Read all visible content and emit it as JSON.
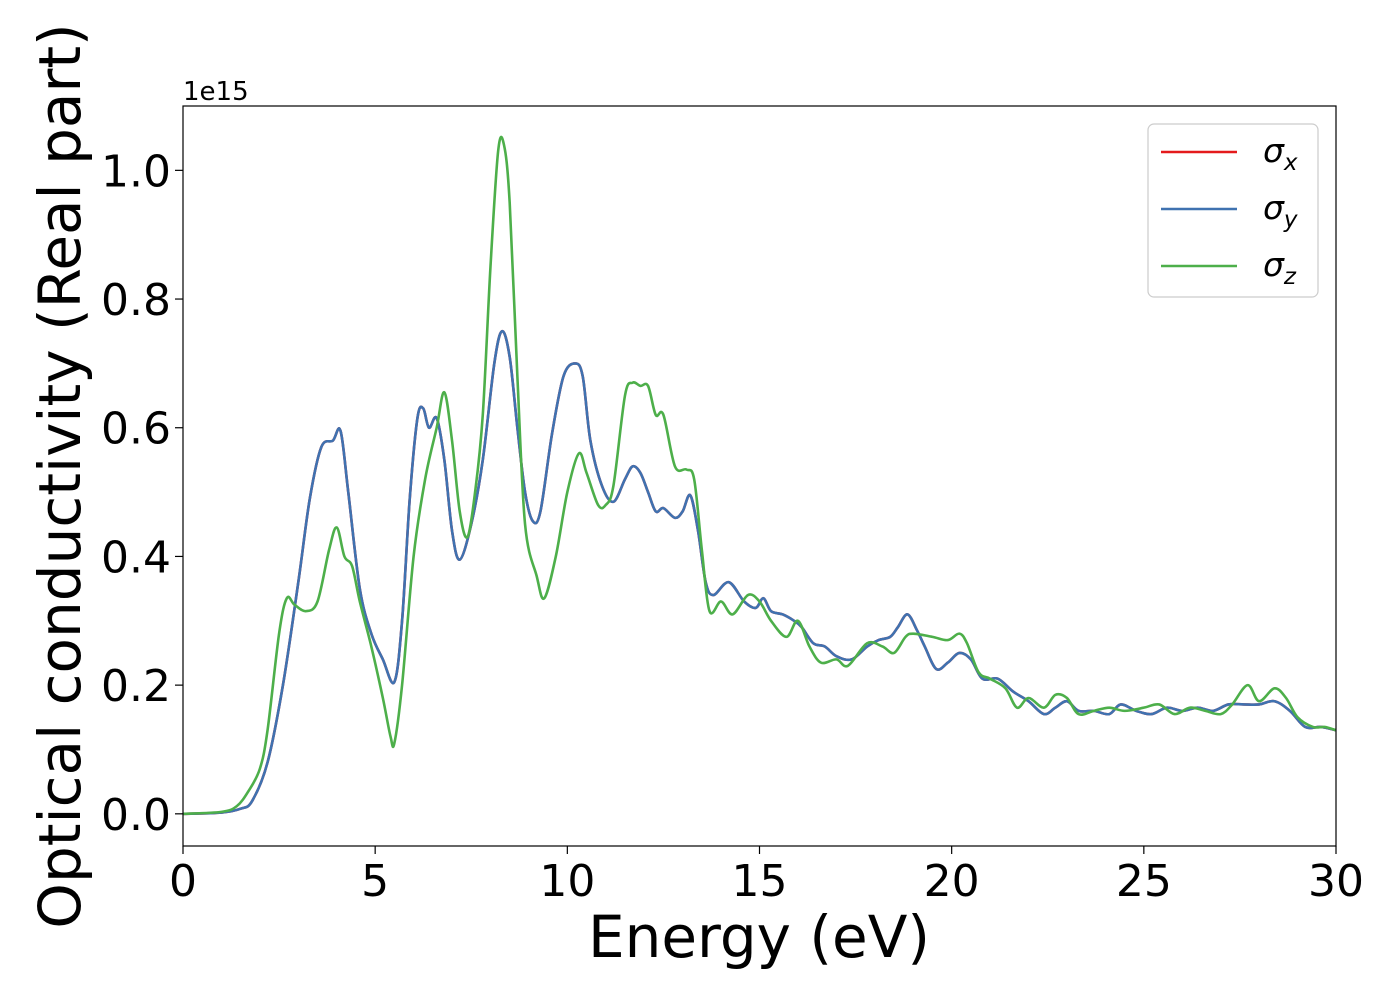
{
  "chart_data": {
    "type": "line",
    "title": "",
    "xlabel": "Energy (eV)",
    "ylabel": "Optical conductivity (Real part)",
    "y_offset_label": "1e15",
    "xlim": [
      0,
      30
    ],
    "ylim": [
      -0.05,
      1.1
    ],
    "x_ticks": [
      0,
      5,
      10,
      15,
      20,
      25,
      30
    ],
    "x_tick_labels": [
      "0",
      "5",
      "10",
      "15",
      "20",
      "25",
      "30"
    ],
    "y_ticks": [
      0.0,
      0.2,
      0.4,
      0.6,
      0.8,
      1.0
    ],
    "y_tick_labels": [
      "0.0",
      "0.2",
      "0.4",
      "0.6",
      "0.8",
      "1.0"
    ],
    "grid": false,
    "legend_position": "top-right",
    "series": [
      {
        "name": "σx",
        "symbol": "σ",
        "subscript": "x",
        "color": "#e41a1c",
        "points": [
          [
            0,
            0
          ],
          [
            1,
            0.002
          ],
          [
            1.5,
            0.008
          ],
          [
            1.8,
            0.02
          ],
          [
            2.2,
            0.08
          ],
          [
            2.6,
            0.2
          ],
          [
            3.0,
            0.36
          ],
          [
            3.3,
            0.49
          ],
          [
            3.6,
            0.57
          ],
          [
            3.9,
            0.58
          ],
          [
            4.1,
            0.595
          ],
          [
            4.3,
            0.5
          ],
          [
            4.6,
            0.35
          ],
          [
            4.9,
            0.28
          ],
          [
            5.2,
            0.24
          ],
          [
            5.5,
            0.205
          ],
          [
            5.7,
            0.3
          ],
          [
            5.9,
            0.49
          ],
          [
            6.1,
            0.615
          ],
          [
            6.25,
            0.63
          ],
          [
            6.4,
            0.6
          ],
          [
            6.6,
            0.615
          ],
          [
            6.8,
            0.55
          ],
          [
            7.0,
            0.44
          ],
          [
            7.2,
            0.395
          ],
          [
            7.5,
            0.45
          ],
          [
            7.8,
            0.55
          ],
          [
            8.1,
            0.7
          ],
          [
            8.3,
            0.75
          ],
          [
            8.5,
            0.71
          ],
          [
            8.7,
            0.6
          ],
          [
            8.9,
            0.5
          ],
          [
            9.1,
            0.455
          ],
          [
            9.3,
            0.47
          ],
          [
            9.6,
            0.59
          ],
          [
            9.9,
            0.68
          ],
          [
            10.2,
            0.7
          ],
          [
            10.4,
            0.68
          ],
          [
            10.6,
            0.58
          ],
          [
            10.9,
            0.51
          ],
          [
            11.2,
            0.485
          ],
          [
            11.5,
            0.52
          ],
          [
            11.7,
            0.54
          ],
          [
            11.9,
            0.53
          ],
          [
            12.1,
            0.5
          ],
          [
            12.3,
            0.47
          ],
          [
            12.5,
            0.475
          ],
          [
            12.8,
            0.46
          ],
          [
            13.0,
            0.47
          ],
          [
            13.2,
            0.495
          ],
          [
            13.4,
            0.44
          ],
          [
            13.6,
            0.36
          ],
          [
            13.8,
            0.34
          ],
          [
            14.2,
            0.36
          ],
          [
            14.6,
            0.33
          ],
          [
            14.9,
            0.32
          ],
          [
            15.1,
            0.335
          ],
          [
            15.3,
            0.315
          ],
          [
            15.6,
            0.31
          ],
          [
            15.9,
            0.3
          ],
          [
            16.1,
            0.29
          ],
          [
            16.4,
            0.265
          ],
          [
            16.7,
            0.26
          ],
          [
            17.0,
            0.245
          ],
          [
            17.4,
            0.24
          ],
          [
            17.8,
            0.26
          ],
          [
            18.1,
            0.27
          ],
          [
            18.4,
            0.275
          ],
          [
            18.6,
            0.29
          ],
          [
            18.85,
            0.31
          ],
          [
            19.1,
            0.285
          ],
          [
            19.3,
            0.26
          ],
          [
            19.6,
            0.225
          ],
          [
            19.9,
            0.235
          ],
          [
            20.2,
            0.25
          ],
          [
            20.5,
            0.24
          ],
          [
            20.8,
            0.21
          ],
          [
            21.2,
            0.21
          ],
          [
            21.6,
            0.19
          ],
          [
            22.0,
            0.175
          ],
          [
            22.4,
            0.155
          ],
          [
            22.7,
            0.165
          ],
          [
            23.0,
            0.175
          ],
          [
            23.3,
            0.16
          ],
          [
            23.7,
            0.16
          ],
          [
            24.1,
            0.155
          ],
          [
            24.4,
            0.17
          ],
          [
            24.8,
            0.16
          ],
          [
            25.2,
            0.155
          ],
          [
            25.6,
            0.165
          ],
          [
            26.0,
            0.16
          ],
          [
            26.4,
            0.165
          ],
          [
            26.8,
            0.16
          ],
          [
            27.2,
            0.17
          ],
          [
            27.6,
            0.17
          ],
          [
            28.0,
            0.17
          ],
          [
            28.4,
            0.175
          ],
          [
            28.8,
            0.16
          ],
          [
            29.2,
            0.135
          ],
          [
            29.6,
            0.135
          ],
          [
            30.0,
            0.13
          ]
        ]
      },
      {
        "name": "σy",
        "symbol": "σ",
        "subscript": "y",
        "color": "#3f72b0",
        "points": [
          [
            0,
            0
          ],
          [
            1,
            0.002
          ],
          [
            1.5,
            0.008
          ],
          [
            1.8,
            0.02
          ],
          [
            2.2,
            0.08
          ],
          [
            2.6,
            0.2
          ],
          [
            3.0,
            0.36
          ],
          [
            3.3,
            0.49
          ],
          [
            3.6,
            0.57
          ],
          [
            3.9,
            0.58
          ],
          [
            4.1,
            0.595
          ],
          [
            4.3,
            0.5
          ],
          [
            4.6,
            0.35
          ],
          [
            4.9,
            0.28
          ],
          [
            5.2,
            0.24
          ],
          [
            5.5,
            0.205
          ],
          [
            5.7,
            0.3
          ],
          [
            5.9,
            0.49
          ],
          [
            6.1,
            0.615
          ],
          [
            6.25,
            0.63
          ],
          [
            6.4,
            0.6
          ],
          [
            6.6,
            0.615
          ],
          [
            6.8,
            0.55
          ],
          [
            7.0,
            0.44
          ],
          [
            7.2,
            0.395
          ],
          [
            7.5,
            0.45
          ],
          [
            7.8,
            0.55
          ],
          [
            8.1,
            0.7
          ],
          [
            8.3,
            0.75
          ],
          [
            8.5,
            0.71
          ],
          [
            8.7,
            0.6
          ],
          [
            8.9,
            0.5
          ],
          [
            9.1,
            0.455
          ],
          [
            9.3,
            0.47
          ],
          [
            9.6,
            0.59
          ],
          [
            9.9,
            0.68
          ],
          [
            10.2,
            0.7
          ],
          [
            10.4,
            0.68
          ],
          [
            10.6,
            0.58
          ],
          [
            10.9,
            0.51
          ],
          [
            11.2,
            0.485
          ],
          [
            11.5,
            0.52
          ],
          [
            11.7,
            0.54
          ],
          [
            11.9,
            0.53
          ],
          [
            12.1,
            0.5
          ],
          [
            12.3,
            0.47
          ],
          [
            12.5,
            0.475
          ],
          [
            12.8,
            0.46
          ],
          [
            13.0,
            0.47
          ],
          [
            13.2,
            0.495
          ],
          [
            13.4,
            0.44
          ],
          [
            13.6,
            0.36
          ],
          [
            13.8,
            0.34
          ],
          [
            14.2,
            0.36
          ],
          [
            14.6,
            0.33
          ],
          [
            14.9,
            0.32
          ],
          [
            15.1,
            0.335
          ],
          [
            15.3,
            0.315
          ],
          [
            15.6,
            0.31
          ],
          [
            15.9,
            0.3
          ],
          [
            16.1,
            0.29
          ],
          [
            16.4,
            0.265
          ],
          [
            16.7,
            0.26
          ],
          [
            17.0,
            0.245
          ],
          [
            17.4,
            0.24
          ],
          [
            17.8,
            0.26
          ],
          [
            18.1,
            0.27
          ],
          [
            18.4,
            0.275
          ],
          [
            18.6,
            0.29
          ],
          [
            18.85,
            0.31
          ],
          [
            19.1,
            0.285
          ],
          [
            19.3,
            0.26
          ],
          [
            19.6,
            0.225
          ],
          [
            19.9,
            0.235
          ],
          [
            20.2,
            0.25
          ],
          [
            20.5,
            0.24
          ],
          [
            20.8,
            0.21
          ],
          [
            21.2,
            0.21
          ],
          [
            21.6,
            0.19
          ],
          [
            22.0,
            0.175
          ],
          [
            22.4,
            0.155
          ],
          [
            22.7,
            0.165
          ],
          [
            23.0,
            0.175
          ],
          [
            23.3,
            0.16
          ],
          [
            23.7,
            0.16
          ],
          [
            24.1,
            0.155
          ],
          [
            24.4,
            0.17
          ],
          [
            24.8,
            0.16
          ],
          [
            25.2,
            0.155
          ],
          [
            25.6,
            0.165
          ],
          [
            26.0,
            0.16
          ],
          [
            26.4,
            0.165
          ],
          [
            26.8,
            0.16
          ],
          [
            27.2,
            0.17
          ],
          [
            27.6,
            0.17
          ],
          [
            28.0,
            0.17
          ],
          [
            28.4,
            0.175
          ],
          [
            28.8,
            0.16
          ],
          [
            29.2,
            0.135
          ],
          [
            29.6,
            0.135
          ],
          [
            30.0,
            0.13
          ]
        ]
      },
      {
        "name": "σz",
        "symbol": "σ",
        "subscript": "z",
        "color": "#4daf4a",
        "points": [
          [
            0,
            0
          ],
          [
            1,
            0.003
          ],
          [
            1.4,
            0.012
          ],
          [
            1.7,
            0.035
          ],
          [
            2.0,
            0.07
          ],
          [
            2.2,
            0.13
          ],
          [
            2.5,
            0.28
          ],
          [
            2.7,
            0.335
          ],
          [
            2.9,
            0.325
          ],
          [
            3.2,
            0.315
          ],
          [
            3.5,
            0.33
          ],
          [
            3.8,
            0.41
          ],
          [
            4.0,
            0.445
          ],
          [
            4.2,
            0.4
          ],
          [
            4.4,
            0.385
          ],
          [
            4.6,
            0.33
          ],
          [
            4.9,
            0.26
          ],
          [
            5.2,
            0.18
          ],
          [
            5.4,
            0.12
          ],
          [
            5.5,
            0.11
          ],
          [
            5.7,
            0.2
          ],
          [
            6.0,
            0.4
          ],
          [
            6.3,
            0.52
          ],
          [
            6.6,
            0.6
          ],
          [
            6.8,
            0.655
          ],
          [
            7.0,
            0.58
          ],
          [
            7.2,
            0.47
          ],
          [
            7.4,
            0.43
          ],
          [
            7.6,
            0.5
          ],
          [
            7.8,
            0.62
          ],
          [
            8.0,
            0.85
          ],
          [
            8.2,
            1.03
          ],
          [
            8.35,
            1.04
          ],
          [
            8.5,
            0.95
          ],
          [
            8.7,
            0.68
          ],
          [
            8.9,
            0.45
          ],
          [
            9.2,
            0.37
          ],
          [
            9.4,
            0.335
          ],
          [
            9.7,
            0.4
          ],
          [
            10.0,
            0.5
          ],
          [
            10.3,
            0.56
          ],
          [
            10.5,
            0.53
          ],
          [
            10.8,
            0.48
          ],
          [
            11.0,
            0.48
          ],
          [
            11.2,
            0.51
          ],
          [
            11.5,
            0.65
          ],
          [
            11.7,
            0.67
          ],
          [
            11.9,
            0.665
          ],
          [
            12.1,
            0.665
          ],
          [
            12.3,
            0.62
          ],
          [
            12.5,
            0.62
          ],
          [
            12.8,
            0.54
          ],
          [
            13.1,
            0.535
          ],
          [
            13.3,
            0.52
          ],
          [
            13.5,
            0.41
          ],
          [
            13.7,
            0.315
          ],
          [
            14.0,
            0.33
          ],
          [
            14.3,
            0.31
          ],
          [
            14.7,
            0.34
          ],
          [
            15.0,
            0.33
          ],
          [
            15.3,
            0.3
          ],
          [
            15.7,
            0.275
          ],
          [
            16.0,
            0.3
          ],
          [
            16.3,
            0.26
          ],
          [
            16.6,
            0.235
          ],
          [
            17.0,
            0.24
          ],
          [
            17.3,
            0.23
          ],
          [
            17.8,
            0.265
          ],
          [
            18.2,
            0.26
          ],
          [
            18.5,
            0.25
          ],
          [
            18.8,
            0.275
          ],
          [
            19.0,
            0.28
          ],
          [
            19.5,
            0.275
          ],
          [
            19.9,
            0.27
          ],
          [
            20.2,
            0.28
          ],
          [
            20.4,
            0.265
          ],
          [
            20.7,
            0.22
          ],
          [
            21.0,
            0.21
          ],
          [
            21.4,
            0.195
          ],
          [
            21.7,
            0.165
          ],
          [
            22.0,
            0.18
          ],
          [
            22.4,
            0.165
          ],
          [
            22.7,
            0.185
          ],
          [
            23.0,
            0.18
          ],
          [
            23.3,
            0.155
          ],
          [
            23.7,
            0.16
          ],
          [
            24.1,
            0.165
          ],
          [
            24.5,
            0.16
          ],
          [
            25.0,
            0.165
          ],
          [
            25.4,
            0.17
          ],
          [
            25.8,
            0.155
          ],
          [
            26.2,
            0.165
          ],
          [
            26.6,
            0.16
          ],
          [
            27.0,
            0.155
          ],
          [
            27.3,
            0.17
          ],
          [
            27.7,
            0.2
          ],
          [
            28.0,
            0.175
          ],
          [
            28.4,
            0.195
          ],
          [
            28.7,
            0.18
          ],
          [
            29.0,
            0.15
          ],
          [
            29.4,
            0.135
          ],
          [
            29.7,
            0.135
          ],
          [
            30.0,
            0.13
          ]
        ]
      }
    ]
  }
}
